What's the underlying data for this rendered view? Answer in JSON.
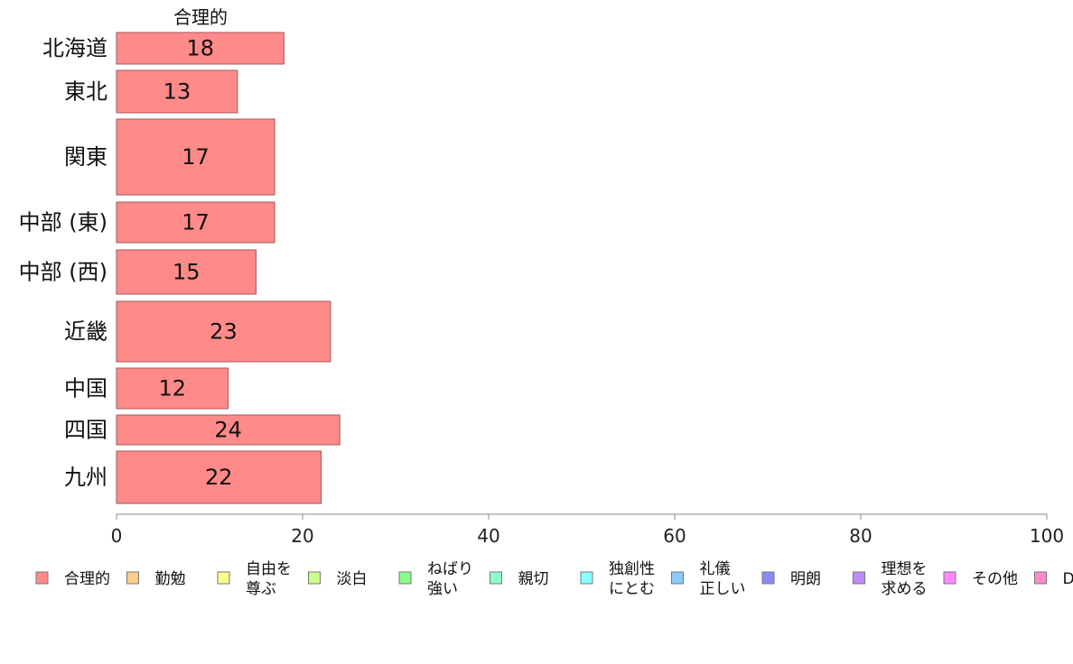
{
  "chart_data": {
    "type": "bar",
    "orientation": "horizontal",
    "title": "合理的",
    "categories": [
      "北海道",
      "東北",
      "関東",
      "中部 (東)",
      "中部 (西)",
      "近畿",
      "中国",
      "四国",
      "九州"
    ],
    "series": [
      {
        "name": "合理的",
        "values": [
          18,
          13,
          17,
          17,
          15,
          23,
          12,
          24,
          22
        ],
        "color": "#ff8a8a"
      }
    ],
    "xlim": [
      0,
      100
    ],
    "xticks": [
      0,
      20,
      40,
      60,
      80,
      100
    ],
    "xlabel": "",
    "ylabel": "",
    "grid": false,
    "legend_position": "bottom",
    "legend": [
      {
        "label": "合理的",
        "color": "#ff8a8a"
      },
      {
        "label": "勤勉",
        "color": "#ffcc8a"
      },
      {
        "label": "自由を\n尊ぶ",
        "color": "#ffff8a"
      },
      {
        "label": "淡白",
        "color": "#ccff8a"
      },
      {
        "label": "ねばり\n強い",
        "color": "#8aff8a"
      },
      {
        "label": "親切",
        "color": "#8affcc"
      },
      {
        "label": "独創性\nにとむ",
        "color": "#8affff"
      },
      {
        "label": "礼儀\n正しい",
        "color": "#8acaff"
      },
      {
        "label": "明朗",
        "color": "#8a8aff"
      },
      {
        "label": "理想を\n求める",
        "color": "#c08aff"
      },
      {
        "label": "その他",
        "color": "#ff8aff"
      },
      {
        "label": "D",
        "color": "#ff8acc"
      }
    ]
  }
}
